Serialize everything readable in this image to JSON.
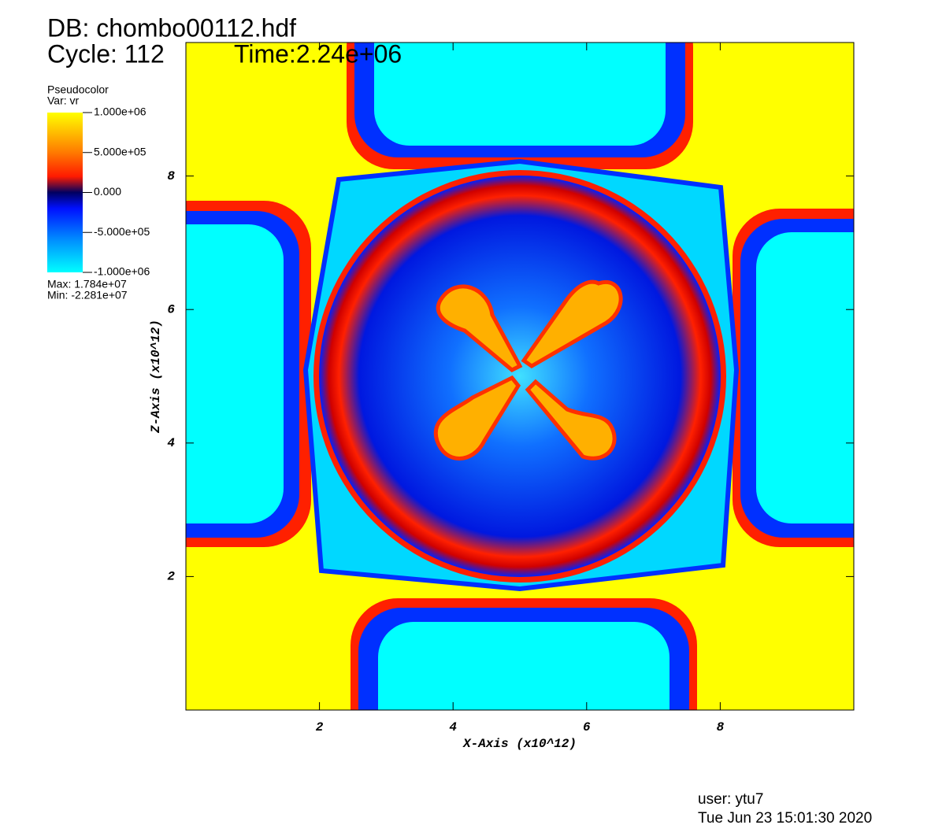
{
  "chart_data": {
    "type": "pseudocolor",
    "db": "DB: chombo00112.hdf",
    "cycle": "Cycle: 112",
    "time": "Time:2.24e+06",
    "legend_title": "Pseudocolor",
    "legend_var": "Var: vr",
    "max_label": "Max:  1.784e+07",
    "min_label": "Min: -2.281e+07",
    "x_label": "X-Axis (x10^12)",
    "y_label": "Z-Axis (x10^12)",
    "xlim": [
      0,
      10
    ],
    "ylim": [
      0,
      10
    ],
    "xticks": [
      2,
      4,
      6,
      8
    ],
    "yticks": [
      2,
      4,
      6,
      8
    ],
    "colorbar_lim": [
      -1000000,
      1000000
    ],
    "colorbar_ticks": [
      {
        "value": 1000000,
        "label": "1.000e+06"
      },
      {
        "value": 500000,
        "label": "5.000e+05"
      },
      {
        "value": 0,
        "label": "0.000"
      },
      {
        "value": -500000,
        "label": "-5.000e+05"
      },
      {
        "value": -1000000,
        "label": "-1.000e+06"
      }
    ],
    "user": "user: ytu7",
    "date": "Tue Jun 23 15:01:30 2020"
  }
}
